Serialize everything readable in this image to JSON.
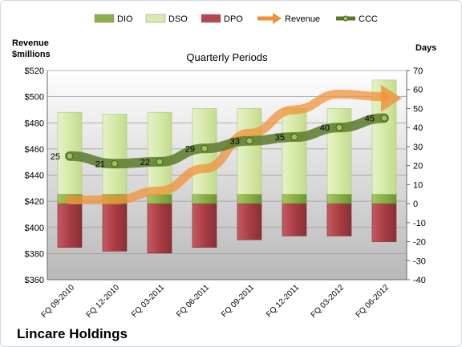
{
  "chart_data": {
    "type": "bar",
    "subtitle": "Quarterly Periods",
    "company": "Lincare Holdings",
    "y_left_label": [
      "Revenue",
      "$millions"
    ],
    "y_right_label": "Days",
    "categories": [
      "FQ 09-2010",
      "FQ 12-2010",
      "FQ 03-2011",
      "FQ 06-2011",
      "FQ 09-2011",
      "FQ 12-2011",
      "FQ 03-2012",
      "FQ 06-2012"
    ],
    "y_left_range": [
      360,
      520
    ],
    "y_left_ticks": [
      "$360",
      "$380",
      "$400",
      "$420",
      "$440",
      "$460",
      "$480",
      "$500",
      "$520"
    ],
    "y_right_range": [
      -40,
      70
    ],
    "y_right_ticks": [
      "-40",
      "-30",
      "-20",
      "-10",
      "0",
      "10",
      "20",
      "30",
      "40",
      "50",
      "60",
      "70"
    ],
    "legend_position": "top",
    "grid": true,
    "series": [
      {
        "name": "DIO",
        "kind": "stacked-bar",
        "axis": "right",
        "color": "#8bb04a",
        "values": [
          5,
          5,
          5,
          5,
          5,
          5,
          5,
          5
        ]
      },
      {
        "name": "DSO",
        "kind": "stacked-bar",
        "axis": "right",
        "color": "#d8eab0",
        "values": [
          43,
          42,
          43,
          45,
          45,
          45,
          45,
          60
        ]
      },
      {
        "name": "DPO",
        "kind": "negative-bar",
        "axis": "right",
        "color": "#b5474d",
        "values": [
          -23,
          -25,
          -26,
          -23,
          -19,
          -17,
          -17,
          -20
        ]
      },
      {
        "name": "Revenue",
        "kind": "arrow",
        "axis": "left",
        "color": "#f0913a",
        "values": [
          421,
          421,
          428,
          445,
          472,
          490,
          502,
          500
        ]
      },
      {
        "name": "CCC",
        "kind": "line",
        "axis": "right",
        "color": "#5a7a2a",
        "values": [
          25,
          21,
          22,
          29,
          33,
          35,
          40,
          45
        ]
      }
    ]
  }
}
